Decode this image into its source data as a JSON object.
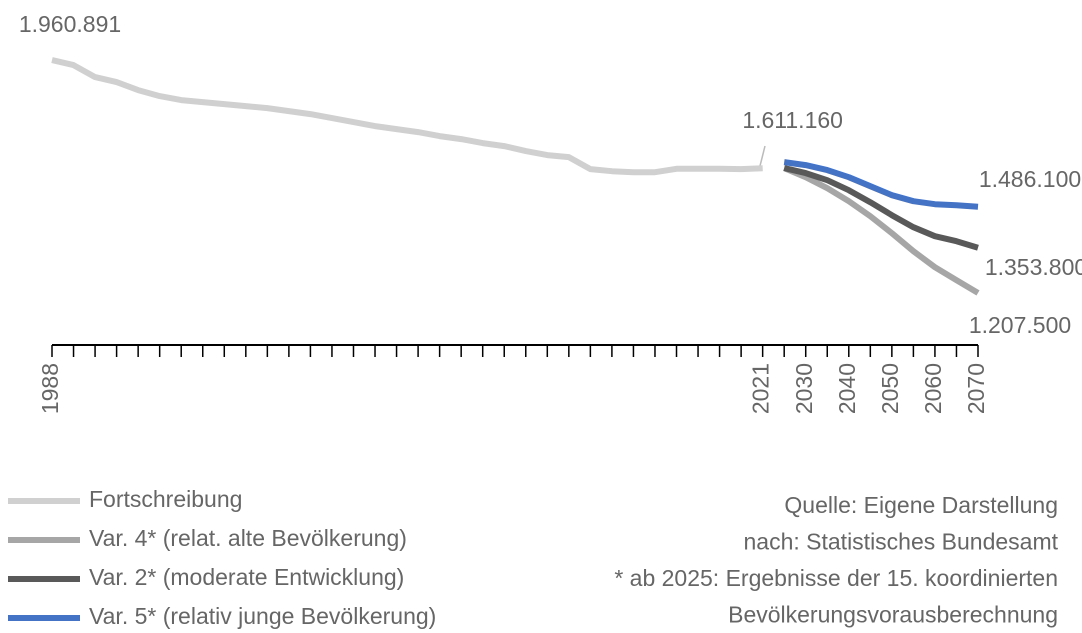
{
  "chart_data": {
    "type": "line",
    "categories": [
      1988,
      null,
      null,
      null,
      null,
      null,
      null,
      null,
      null,
      null,
      null,
      null,
      null,
      null,
      null,
      null,
      null,
      null,
      null,
      null,
      null,
      null,
      null,
      null,
      null,
      null,
      null,
      null,
      null,
      null,
      null,
      null,
      null,
      2021,
      null,
      2030,
      null,
      2040,
      null,
      2050,
      null,
      2060,
      null,
      2070
    ],
    "ylim": [
      1000000,
      2000000
    ],
    "legend": "bottom-left",
    "series": [
      {
        "name": "Fortschreibung",
        "color": "#d0d0d0",
        "values": [
          1960891,
          1944700,
          1905800,
          1889600,
          1863700,
          1844300,
          1831300,
          1824900,
          1818400,
          1811900,
          1805400,
          1795700,
          1786000,
          1773100,
          1760100,
          1747200,
          1737400,
          1727700,
          1714800,
          1705100,
          1692100,
          1682400,
          1666200,
          1653300,
          1646800,
          1608000,
          1601400,
          1598200,
          1598200,
          1609000,
          1609500,
          1609000,
          1608000,
          1611160,
          null,
          null,
          null,
          null,
          null,
          null,
          null,
          null,
          null,
          null
        ],
        "value_labels": [
          "1.960.891",
          null,
          null,
          null,
          null,
          null,
          null,
          null,
          null,
          null,
          null,
          null,
          null,
          null,
          null,
          null,
          null,
          null,
          null,
          null,
          null,
          null,
          null,
          null,
          null,
          null,
          null,
          null,
          null,
          null,
          null,
          null,
          null,
          "1.611.160",
          null,
          null,
          null,
          null,
          null,
          null,
          null,
          null,
          null,
          null
        ]
      },
      {
        "name": "Var. 4* (relat. alte Bevölkerung)",
        "color": "#a6a6a6",
        "values": [
          null,
          null,
          null,
          null,
          null,
          null,
          null,
          null,
          null,
          null,
          null,
          null,
          null,
          null,
          null,
          null,
          null,
          null,
          null,
          null,
          null,
          null,
          null,
          null,
          null,
          null,
          null,
          null,
          null,
          null,
          null,
          null,
          null,
          null,
          1611200,
          1582000,
          1546400,
          1504300,
          1455700,
          1400700,
          1342400,
          1290600,
          1248500,
          1207500
        ],
        "value_labels": [
          null,
          null,
          null,
          null,
          null,
          null,
          null,
          null,
          null,
          null,
          null,
          null,
          null,
          null,
          null,
          null,
          null,
          null,
          null,
          null,
          null,
          null,
          null,
          null,
          null,
          null,
          null,
          null,
          null,
          null,
          null,
          null,
          null,
          null,
          null,
          null,
          null,
          null,
          null,
          null,
          null,
          null,
          null,
          "1.207.500"
        ]
      },
      {
        "name": "Var. 2* (moderate Entwicklung)",
        "color": "#595959",
        "values": [
          null,
          null,
          null,
          null,
          null,
          null,
          null,
          null,
          null,
          null,
          null,
          null,
          null,
          null,
          null,
          null,
          null,
          null,
          null,
          null,
          null,
          null,
          null,
          null,
          null,
          null,
          null,
          null,
          null,
          null,
          null,
          null,
          null,
          null,
          1611200,
          1595000,
          1572300,
          1539900,
          1501100,
          1458900,
          1420100,
          1391000,
          1374800,
          1353800
        ],
        "value_labels": [
          null,
          null,
          null,
          null,
          null,
          null,
          null,
          null,
          null,
          null,
          null,
          null,
          null,
          null,
          null,
          null,
          null,
          null,
          null,
          null,
          null,
          null,
          null,
          null,
          null,
          null,
          null,
          null,
          null,
          null,
          null,
          null,
          null,
          null,
          null,
          null,
          null,
          null,
          null,
          null,
          null,
          null,
          null,
          "1.353.800"
        ]
      },
      {
        "name": "Var. 5* (relativ junge Bevölkerung)",
        "color": "#4472c4",
        "values": [
          null,
          null,
          null,
          null,
          null,
          null,
          null,
          null,
          null,
          null,
          null,
          null,
          null,
          null,
          null,
          null,
          null,
          null,
          null,
          null,
          null,
          null,
          null,
          null,
          null,
          null,
          null,
          null,
          null,
          null,
          null,
          null,
          null,
          null,
          1630600,
          1620900,
          1604700,
          1582000,
          1552900,
          1523700,
          1504300,
          1494600,
          1491400,
          1486100
        ],
        "value_labels": [
          null,
          null,
          null,
          null,
          null,
          null,
          null,
          null,
          null,
          null,
          null,
          null,
          null,
          null,
          null,
          null,
          null,
          null,
          null,
          null,
          null,
          null,
          null,
          null,
          null,
          null,
          null,
          null,
          null,
          null,
          null,
          null,
          null,
          null,
          null,
          null,
          null,
          null,
          null,
          null,
          null,
          null,
          null,
          "1.486.100"
        ]
      }
    ],
    "notes": [
      "Quelle: Eigene Darstellung",
      "nach: Statistisches Bundesamt",
      "* ab 2025: Ergebnisse der 15. koordinierten",
      "Bevölkerungsvorausberechnung"
    ]
  }
}
